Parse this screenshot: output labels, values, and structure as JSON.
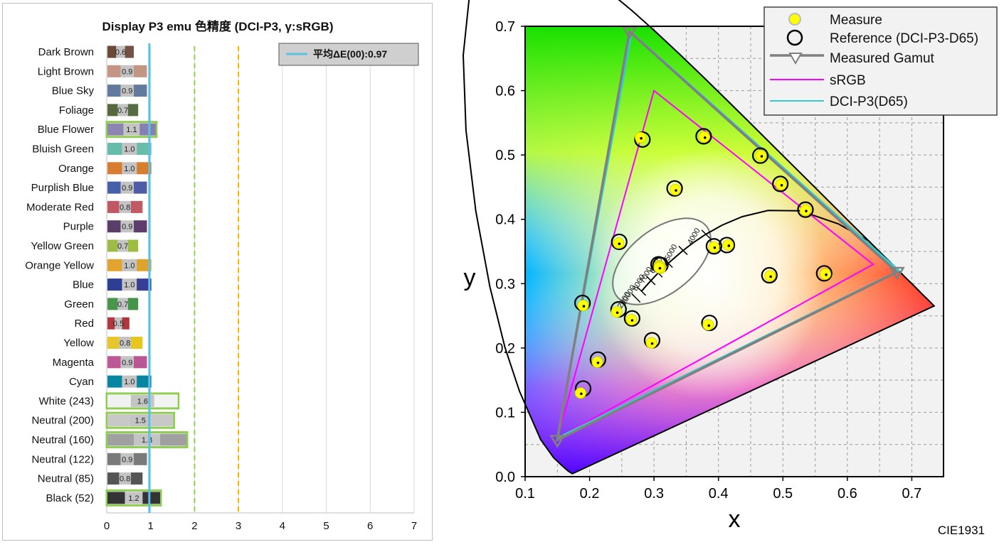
{
  "chart_data": [
    {
      "type": "bar",
      "title": "Display P3 emu 色精度 (DCI-P3, γ:sRGB)",
      "categories": [
        "Dark Brown",
        "Light Brown",
        "Blue Sky",
        "Foliage",
        "Blue Flower",
        "Bluish Green",
        "Orange",
        "Purplish Blue",
        "Moderate Red",
        "Purple",
        "Yellow Green",
        "Orange Yellow",
        "Blue",
        "Green",
        "Red",
        "Yellow",
        "Magenta",
        "Cyan",
        "White (243)",
        "Neutral (200)",
        "Neutral (160)",
        "Neutral (122)",
        "Neutral (85)",
        "Black (52)"
      ],
      "values": [
        0.6,
        0.9,
        0.9,
        0.7,
        1.1,
        1.0,
        1.0,
        0.9,
        0.8,
        0.9,
        0.7,
        1.0,
        1.0,
        0.7,
        0.5,
        0.8,
        0.9,
        1.0,
        1.6,
        1.5,
        1.8,
        0.9,
        0.8,
        1.2
      ],
      "value_labels": [
        "0.6",
        "0.9",
        "0.9",
        "0.7",
        "1.1",
        "1.0",
        "1.0",
        "0.9",
        "0.8",
        "0.9",
        "0.7",
        "1.0",
        "1.0",
        "0.7",
        "0.5",
        "0.8",
        "0.9",
        "1.0",
        "1.6",
        "1.5",
        "1.8",
        "0.9",
        "0.8",
        "1.2"
      ],
      "measured_colors": [
        "#6b4a3a",
        "#c49584",
        "#627a9d",
        "#57683c",
        "#8d84b1",
        "#66bcaa",
        "#d77c31",
        "#4560a8",
        "#c25663",
        "#5b3d6a",
        "#9ebb44",
        "#e2a42f",
        "#2d3f92",
        "#479649",
        "#b1383e",
        "#e8c62a",
        "#bc5896",
        "#0887a3",
        "#f1f1f1",
        "#c8c8c8",
        "#a0a0a0",
        "#7a7a7a",
        "#555555",
        "#343434"
      ],
      "reference_colors": [
        "#735244",
        "#c29682",
        "#627a9d",
        "#576c43",
        "#8580b1",
        "#67bdaa",
        "#d67e2c",
        "#505ba6",
        "#c15a63",
        "#5e3c6c",
        "#9dbc40",
        "#e0a32e",
        "#383d96",
        "#469449",
        "#af363c",
        "#e7c71f",
        "#bb5695",
        "#0885a1",
        "#f3f3f3",
        "#c8c8c8",
        "#a0a0a0",
        "#7a7a7a",
        "#555555",
        "#343434"
      ],
      "series": [
        {
          "name": "平均ΔE(00):0.97",
          "value": 0.97
        }
      ],
      "reference_lines": [
        {
          "value": 2,
          "color": "#92d050"
        },
        {
          "value": 3,
          "color": "#f0b400"
        }
      ],
      "xlim": [
        0,
        7
      ],
      "xticks": [
        "0",
        "1",
        "2",
        "3",
        "4",
        "5",
        "6",
        "7"
      ],
      "threshold_outline": 1.0,
      "outline_color": "#8fce52",
      "grid": true,
      "legend_position": "top-right"
    },
    {
      "type": "scatter",
      "xlabel": "x",
      "ylabel": "y",
      "xlim": [
        0.1,
        0.75
      ],
      "ylim": [
        0,
        0.7
      ],
      "xticks": [
        "0.1",
        "0.2",
        "0.3",
        "0.4",
        "0.5",
        "0.6",
        "0.7"
      ],
      "yticks": [
        "0.0",
        "0.1",
        "0.2",
        "0.3",
        "0.4",
        "0.5",
        "0.6",
        "0.7"
      ],
      "corner_label": "CIE1931",
      "legend": [
        "Measure",
        "Reference (DCI-P3-D65)",
        "Measured Gamut",
        "sRGB",
        "DCI-P3(D65)"
      ],
      "legend_position": "top-right",
      "cct_labels": [
        "4000",
        "5000",
        "6000",
        "7000",
        "8000",
        "10000",
        "12000"
      ],
      "gamuts": {
        "srgb": {
          "color": "#ff00ff",
          "points": [
            [
              0.64,
              0.33
            ],
            [
              0.3,
              0.6
            ],
            [
              0.15,
              0.06
            ]
          ]
        },
        "dci_p3": {
          "color": "#33cccc",
          "points": [
            [
              0.68,
              0.32
            ],
            [
              0.265,
              0.69
            ],
            [
              0.15,
              0.06
            ]
          ]
        },
        "measured": {
          "color": "#808080",
          "points": [
            [
              0.677,
              0.318
            ],
            [
              0.262,
              0.692
            ],
            [
              0.15,
              0.057
            ]
          ]
        }
      },
      "planckian_locus": [
        [
          0.6307,
          0.3677
        ],
        [
          0.5857,
          0.3931
        ],
        [
          0.5267,
          0.4133
        ],
        [
          0.477,
          0.4137
        ],
        [
          0.4369,
          0.4041
        ],
        [
          0.4053,
          0.3907
        ],
        [
          0.3805,
          0.3768
        ],
        [
          0.3608,
          0.3636
        ],
        [
          0.3451,
          0.3516
        ],
        [
          0.3221,
          0.3318
        ],
        [
          0.3064,
          0.3166
        ],
        [
          0.2952,
          0.3048
        ],
        [
          0.2869,
          0.2956
        ],
        [
          0.2806,
          0.2883
        ]
      ],
      "cct_marks": [
        [
          0.3805,
          0.3768
        ],
        [
          0.3451,
          0.3516
        ],
        [
          0.3221,
          0.3318
        ],
        [
          0.3064,
          0.3166
        ],
        [
          0.2952,
          0.3048
        ],
        [
          0.2806,
          0.2883
        ],
        [
          0.272,
          0.2777
        ]
      ],
      "reference_points": [
        [
          0.4,
          0.35
        ],
        [
          0.377,
          0.345
        ],
        [
          0.248,
          0.265
        ],
        [
          0.336,
          0.434
        ],
        [
          0.265,
          0.24
        ],
        [
          0.261,
          0.343
        ],
        [
          0.51,
          0.408
        ],
        [
          0.216,
          0.177
        ],
        [
          0.46,
          0.311
        ],
        [
          0.288,
          0.209
        ],
        [
          0.38,
          0.489
        ],
        [
          0.472,
          0.45
        ],
        [
          0.191,
          0.132
        ],
        [
          0.32,
          0.521
        ],
        [
          0.56,
          0.314
        ],
        [
          0.47,
          0.473
        ],
        [
          0.382,
          0.239
        ],
        [
          0.194,
          0.262
        ],
        [
          0.313,
          0.329
        ],
        [
          0.313,
          0.329
        ],
        [
          0.313,
          0.329
        ],
        [
          0.313,
          0.329
        ],
        [
          0.313,
          0.329
        ],
        [
          0.313,
          0.329
        ]
      ],
      "measure_points": [
        [
          0.393,
          0.357
        ],
        [
          0.378,
          0.528
        ],
        [
          0.19,
          0.266
        ],
        [
          0.333,
          0.446
        ],
        [
          0.245,
          0.363
        ],
        [
          0.265,
          0.244
        ],
        [
          0.415,
          0.36
        ],
        [
          0.296,
          0.208
        ],
        [
          0.48,
          0.312
        ],
        [
          0.212,
          0.178
        ],
        [
          0.31,
          0.326
        ],
        [
          0.384,
          0.236
        ],
        [
          0.308,
          0.328
        ],
        [
          0.279,
          0.527
        ],
        [
          0.566,
          0.315
        ],
        [
          0.535,
          0.414
        ],
        [
          0.497,
          0.454
        ],
        [
          0.466,
          0.499
        ],
        [
          0.186,
          0.13
        ],
        [
          0.242,
          0.256
        ],
        [
          0.31,
          0.324
        ],
        [
          0.309,
          0.327
        ],
        [
          0.309,
          0.326
        ],
        [
          0.308,
          0.325
        ]
      ],
      "reference_rings": [
        [
          0.393,
          0.358
        ],
        [
          0.377,
          0.529
        ],
        [
          0.189,
          0.27
        ],
        [
          0.332,
          0.448
        ],
        [
          0.246,
          0.365
        ],
        [
          0.266,
          0.246
        ],
        [
          0.413,
          0.36
        ],
        [
          0.297,
          0.212
        ],
        [
          0.479,
          0.313
        ],
        [
          0.213,
          0.182
        ],
        [
          0.31,
          0.329
        ],
        [
          0.386,
          0.239
        ],
        [
          0.282,
          0.524
        ],
        [
          0.564,
          0.316
        ],
        [
          0.535,
          0.415
        ],
        [
          0.496,
          0.455
        ],
        [
          0.465,
          0.499
        ],
        [
          0.19,
          0.137
        ],
        [
          0.245,
          0.26
        ],
        [
          0.307,
          0.33
        ]
      ]
    }
  ]
}
